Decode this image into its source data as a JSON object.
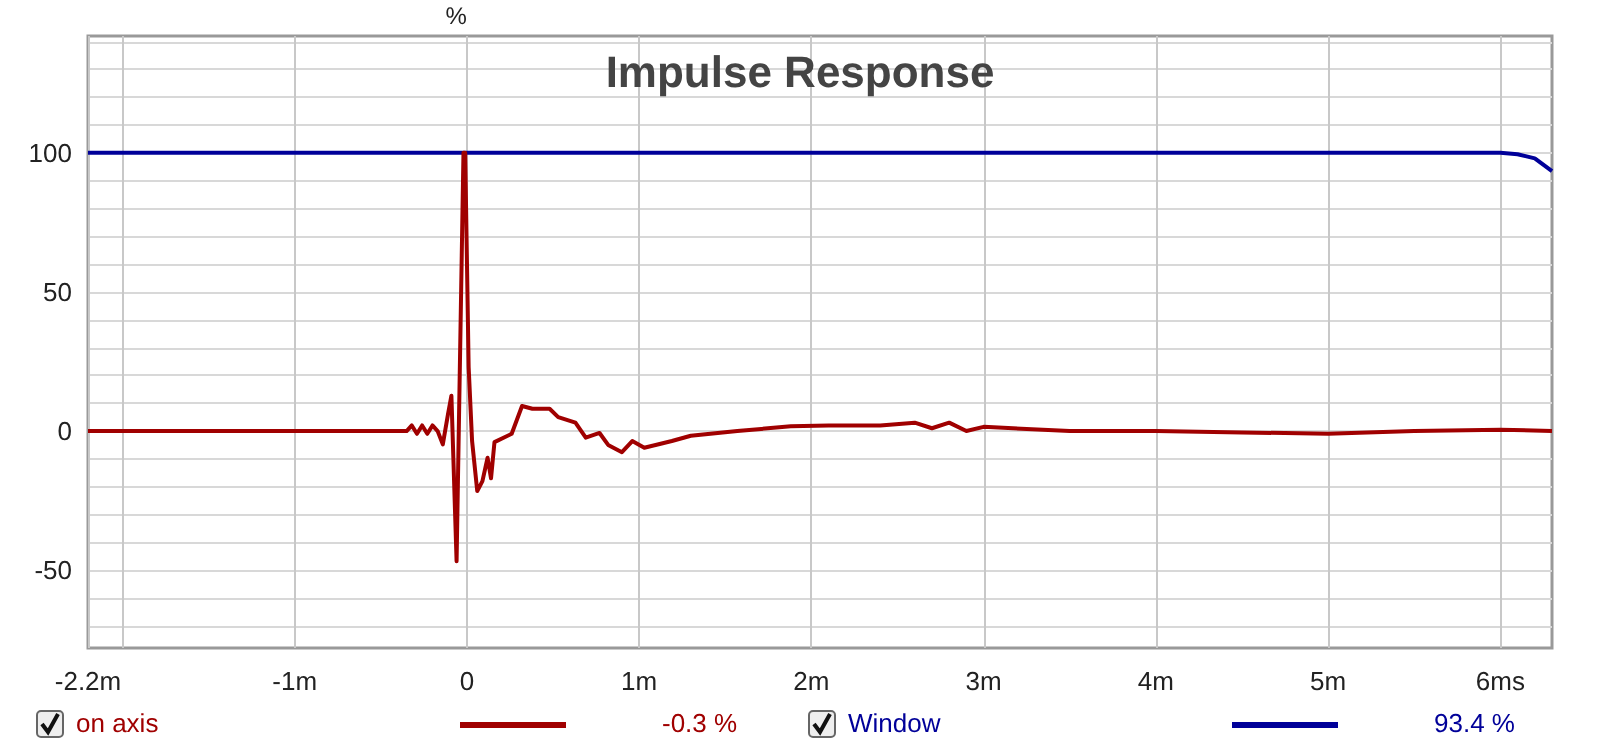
{
  "chart_data": {
    "type": "line",
    "title": "Impulse Response",
    "ylabel": "%",
    "xlim": [
      -2.2,
      6.3
    ],
    "xticks": [
      {
        "value": -2.2,
        "label": "-2.2m"
      },
      {
        "value": -2,
        "label": null
      },
      {
        "value": -1,
        "label": "-1m"
      },
      0,
      {
        "value": 1,
        "label": "1m"
      },
      {
        "value": 2,
        "label": "2m"
      },
      {
        "value": 3,
        "label": "3m"
      },
      {
        "value": 4,
        "label": "4m"
      },
      {
        "value": 5,
        "label": "5m"
      },
      {
        "value": 6,
        "label": "6ms"
      }
    ],
    "ylim": [
      -78,
      142
    ],
    "yticks": [
      {
        "value": -70,
        "label": null
      },
      {
        "value": -60,
        "label": null
      },
      -50,
      {
        "value": -40,
        "label": null
      },
      {
        "value": -30,
        "label": null
      },
      {
        "value": -20,
        "label": null
      },
      {
        "value": -10,
        "label": null
      },
      0,
      {
        "value": 10,
        "label": null
      },
      {
        "value": 20,
        "label": null
      },
      {
        "value": 30,
        "label": null
      },
      {
        "value": 40,
        "label": null
      },
      50,
      {
        "value": 60,
        "label": null
      },
      {
        "value": 70,
        "label": null
      },
      {
        "value": 80,
        "label": null
      },
      {
        "value": 90,
        "label": null
      },
      100,
      {
        "value": 110,
        "label": null
      },
      {
        "value": 120,
        "label": null
      },
      {
        "value": 130,
        "label": null
      },
      {
        "value": 140,
        "label": null
      }
    ],
    "grid": true,
    "legend": "bottom",
    "marker": "none",
    "line_style": "solid",
    "annotations": [
      "-0.3 %",
      "93.4 %"
    ],
    "series": [
      {
        "name": "on axis",
        "color": "#a00000",
        "x": [
          -2.2,
          -0.35,
          -0.32,
          -0.29,
          -0.26,
          -0.23,
          -0.2,
          -0.17,
          -0.14,
          -0.11,
          -0.09,
          -0.06,
          -0.02,
          -0.01,
          0.01,
          0.03,
          0.06,
          0.09,
          0.12,
          0.14,
          0.16,
          0.26,
          0.32,
          0.38,
          0.48,
          0.53,
          0.63,
          0.69,
          0.77,
          0.82,
          0.9,
          0.96,
          1.03,
          1.19,
          1.3,
          1.57,
          1.88,
          2.1,
          2.4,
          2.6,
          2.7,
          2.8,
          2.9,
          3.0,
          3.5,
          4.0,
          4.5,
          5.0,
          5.5,
          6.0,
          6.3
        ],
        "values": [
          0,
          0,
          2,
          -1,
          2,
          -1,
          2,
          0,
          -4.8,
          6,
          12.7,
          -46.8,
          100,
          100,
          23,
          -3.6,
          -21.6,
          -18,
          -9.6,
          -17,
          -4,
          -1,
          9,
          8,
          8,
          5,
          3,
          -2.4,
          -0.7,
          -5,
          -7.6,
          -3.6,
          -6,
          -3.6,
          -1.7,
          0,
          1.7,
          2,
          2,
          3,
          1,
          3,
          0,
          1.5,
          0,
          0,
          -0.5,
          -1,
          0,
          0.5,
          0
        ]
      },
      {
        "name": "Window",
        "color": "#000099",
        "x": [
          -2.2,
          6.0,
          6.1,
          6.2,
          6.3
        ],
        "values": [
          100,
          100,
          99.5,
          98,
          93.4
        ]
      }
    ]
  }
}
